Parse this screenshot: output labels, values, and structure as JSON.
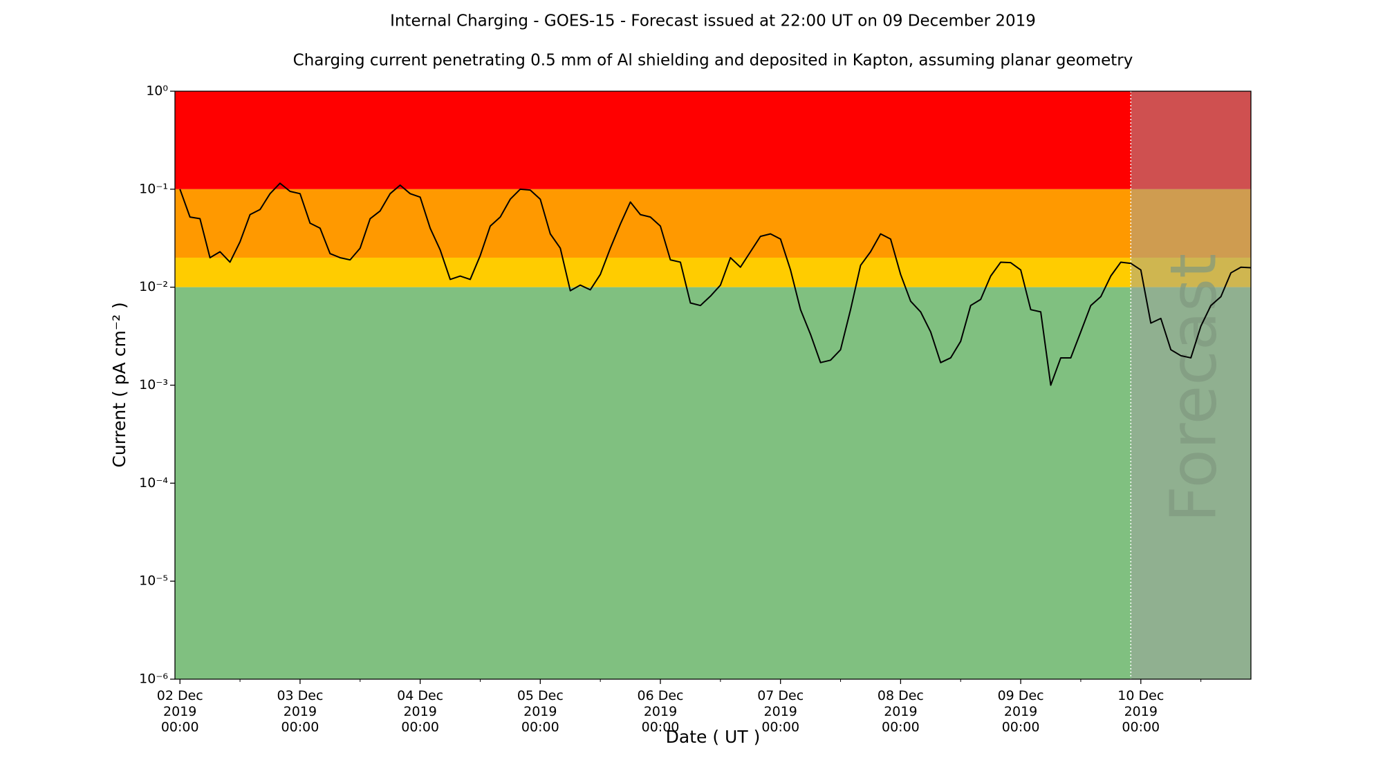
{
  "chart_data": {
    "type": "line",
    "title": "Internal Charging - GOES-15 - Forecast issued at 22:00 UT on 09 December 2019",
    "subtitle": "Charging current penetrating 0.5 mm of Al shielding and deposited in Kapton, assuming planar geometry",
    "xlabel": "Date ( UT )",
    "ylabel": "Current ( pA cm⁻² )",
    "yscale": "log",
    "ylim": [
      1e-06,
      1
    ],
    "yticks": [
      {
        "value": 1e-06,
        "label": "10⁻⁶"
      },
      {
        "value": 1e-05,
        "label": "10⁻⁵"
      },
      {
        "value": 0.0001,
        "label": "10⁻⁴"
      },
      {
        "value": 0.001,
        "label": "10⁻³"
      },
      {
        "value": 0.01,
        "label": "10⁻²"
      },
      {
        "value": 0.1,
        "label": "10⁻¹"
      },
      {
        "value": 1,
        "label": "10⁰"
      }
    ],
    "xlim": [
      "2019-12-01T23:00",
      "2019-12-10T22:00"
    ],
    "xticks": [
      {
        "value": "2019-12-02T00:00",
        "label": "02 Dec\n2019\n00:00"
      },
      {
        "value": "2019-12-03T00:00",
        "label": "03 Dec\n2019\n00:00"
      },
      {
        "value": "2019-12-04T00:00",
        "label": "04 Dec\n2019\n00:00"
      },
      {
        "value": "2019-12-05T00:00",
        "label": "05 Dec\n2019\n00:00"
      },
      {
        "value": "2019-12-06T00:00",
        "label": "06 Dec\n2019\n00:00"
      },
      {
        "value": "2019-12-07T00:00",
        "label": "07 Dec\n2019\n00:00"
      },
      {
        "value": "2019-12-08T00:00",
        "label": "08 Dec\n2019\n00:00"
      },
      {
        "value": "2019-12-09T00:00",
        "label": "09 Dec\n2019\n00:00"
      },
      {
        "value": "2019-12-10T00:00",
        "label": "10 Dec\n2019\n00:00"
      }
    ],
    "xminorticks": [
      "2019-12-02T12:00",
      "2019-12-03T12:00",
      "2019-12-04T12:00",
      "2019-12-05T12:00",
      "2019-12-06T12:00",
      "2019-12-07T12:00",
      "2019-12-08T12:00",
      "2019-12-09T12:00",
      "2019-12-10T12:00"
    ],
    "bands": [
      {
        "from": 0.1,
        "to": 1,
        "color": "#ff0000"
      },
      {
        "from": 0.02,
        "to": 0.1,
        "color": "#ff9900"
      },
      {
        "from": 0.01,
        "to": 0.02,
        "color": "#ffcc00"
      },
      {
        "from": 1e-06,
        "to": 0.01,
        "color": "#80c080"
      }
    ],
    "forecast_start": "2019-12-09T22:00",
    "forecast_label": "Forecast",
    "forecast_shade": "#a0a0a0",
    "x": [
      "2019-12-02T00:00",
      "2019-12-02T02:00",
      "2019-12-02T04:00",
      "2019-12-02T06:00",
      "2019-12-02T08:00",
      "2019-12-02T10:00",
      "2019-12-02T12:00",
      "2019-12-02T14:00",
      "2019-12-02T16:00",
      "2019-12-02T18:00",
      "2019-12-02T20:00",
      "2019-12-02T22:00",
      "2019-12-03T00:00",
      "2019-12-03T02:00",
      "2019-12-03T04:00",
      "2019-12-03T06:00",
      "2019-12-03T08:00",
      "2019-12-03T10:00",
      "2019-12-03T12:00",
      "2019-12-03T14:00",
      "2019-12-03T16:00",
      "2019-12-03T18:00",
      "2019-12-03T20:00",
      "2019-12-03T22:00",
      "2019-12-04T00:00",
      "2019-12-04T02:00",
      "2019-12-04T04:00",
      "2019-12-04T06:00",
      "2019-12-04T08:00",
      "2019-12-04T10:00",
      "2019-12-04T12:00",
      "2019-12-04T14:00",
      "2019-12-04T16:00",
      "2019-12-04T18:00",
      "2019-12-04T20:00",
      "2019-12-04T22:00",
      "2019-12-05T00:00",
      "2019-12-05T02:00",
      "2019-12-05T04:00",
      "2019-12-05T06:00",
      "2019-12-05T08:00",
      "2019-12-05T10:00",
      "2019-12-05T12:00",
      "2019-12-05T14:00",
      "2019-12-05T16:00",
      "2019-12-05T18:00",
      "2019-12-05T20:00",
      "2019-12-05T22:00",
      "2019-12-06T00:00",
      "2019-12-06T02:00",
      "2019-12-06T04:00",
      "2019-12-06T06:00",
      "2019-12-06T08:00",
      "2019-12-06T10:00",
      "2019-12-06T12:00",
      "2019-12-06T14:00",
      "2019-12-06T16:00",
      "2019-12-06T18:00",
      "2019-12-06T20:00",
      "2019-12-06T22:00",
      "2019-12-07T00:00",
      "2019-12-07T02:00",
      "2019-12-07T04:00",
      "2019-12-07T06:00",
      "2019-12-07T08:00",
      "2019-12-07T10:00",
      "2019-12-07T12:00",
      "2019-12-07T14:00",
      "2019-12-07T16:00",
      "2019-12-07T18:00",
      "2019-12-07T20:00",
      "2019-12-07T22:00",
      "2019-12-08T00:00",
      "2019-12-08T02:00",
      "2019-12-08T04:00",
      "2019-12-08T06:00",
      "2019-12-08T08:00",
      "2019-12-08T10:00",
      "2019-12-08T12:00",
      "2019-12-08T14:00",
      "2019-12-08T16:00",
      "2019-12-08T18:00",
      "2019-12-08T20:00",
      "2019-12-08T22:00",
      "2019-12-09T00:00",
      "2019-12-09T02:00",
      "2019-12-09T04:00",
      "2019-12-09T06:00",
      "2019-12-09T08:00",
      "2019-12-09T10:00",
      "2019-12-09T12:00",
      "2019-12-09T14:00",
      "2019-12-09T16:00",
      "2019-12-09T18:00",
      "2019-12-09T20:00",
      "2019-12-09T22:00",
      "2019-12-10T00:00",
      "2019-12-10T02:00",
      "2019-12-10T04:00",
      "2019-12-10T06:00",
      "2019-12-10T08:00",
      "2019-12-10T10:00",
      "2019-12-10T12:00",
      "2019-12-10T14:00",
      "2019-12-10T16:00",
      "2019-12-10T18:00",
      "2019-12-10T20:00",
      "2019-12-10T22:00"
    ],
    "series": [
      {
        "name": "Current",
        "color": "#000000",
        "values": [
          0.1,
          0.052,
          0.05,
          0.02,
          0.023,
          0.018,
          0.029,
          0.055,
          0.062,
          0.09,
          0.115,
          0.095,
          0.09,
          0.045,
          0.04,
          0.022,
          0.02,
          0.019,
          0.025,
          0.05,
          0.06,
          0.09,
          0.11,
          0.09,
          0.083,
          0.04,
          0.024,
          0.012,
          0.013,
          0.012,
          0.021,
          0.042,
          0.052,
          0.079,
          0.1,
          0.098,
          0.079,
          0.035,
          0.025,
          0.0092,
          0.0105,
          0.0094,
          0.0135,
          0.025,
          0.044,
          0.074,
          0.055,
          0.052,
          0.042,
          0.019,
          0.018,
          0.0069,
          0.0065,
          0.0081,
          0.0105,
          0.02,
          0.016,
          0.023,
          0.033,
          0.035,
          0.031,
          0.015,
          0.0059,
          0.0033,
          0.0017,
          0.0018,
          0.0023,
          0.0059,
          0.0167,
          0.023,
          0.035,
          0.031,
          0.0135,
          0.0072,
          0.0056,
          0.0035,
          0.0017,
          0.0019,
          0.0028,
          0.0065,
          0.0075,
          0.013,
          0.018,
          0.0178,
          0.015,
          0.0059,
          0.0056,
          0.001,
          0.0019,
          0.0019,
          0.0035,
          0.0065,
          0.008,
          0.013,
          0.018,
          0.0175,
          0.015,
          0.0043,
          0.0048,
          0.0023,
          0.002,
          0.0019,
          0.004,
          0.0065,
          0.008,
          0.014,
          0.016,
          0.0158
        ]
      }
    ]
  }
}
